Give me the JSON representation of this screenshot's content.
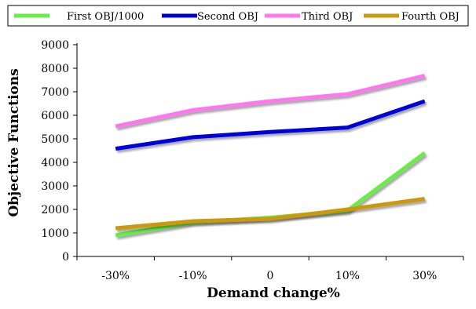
{
  "chart_data": {
    "type": "line",
    "title": "",
    "xlabel": "Demand change%",
    "ylabel": "Objective Functions",
    "categories": [
      "-30%",
      "-10%",
      "0",
      "10%",
      "30%"
    ],
    "ylim": [
      0,
      9000
    ],
    "yticks": [
      0,
      1000,
      2000,
      3000,
      4000,
      5000,
      6000,
      7000,
      8000,
      9000
    ],
    "grid": false,
    "legend": "top",
    "series": [
      {
        "name": "First OBJ/1000",
        "color": "#66ee44",
        "values": [
          900,
          1450,
          1650,
          1950,
          4400
        ]
      },
      {
        "name": "Second OBJ",
        "color": "#0000dd",
        "values": [
          4580,
          5070,
          5290,
          5480,
          6600
        ]
      },
      {
        "name": "Third OBJ",
        "color": "#ff77ee",
        "values": [
          5530,
          6220,
          6600,
          6900,
          7680
        ]
      },
      {
        "name": "Fourth OBJ",
        "color": "#cc9911",
        "values": [
          1200,
          1500,
          1600,
          2000,
          2450
        ]
      }
    ]
  }
}
